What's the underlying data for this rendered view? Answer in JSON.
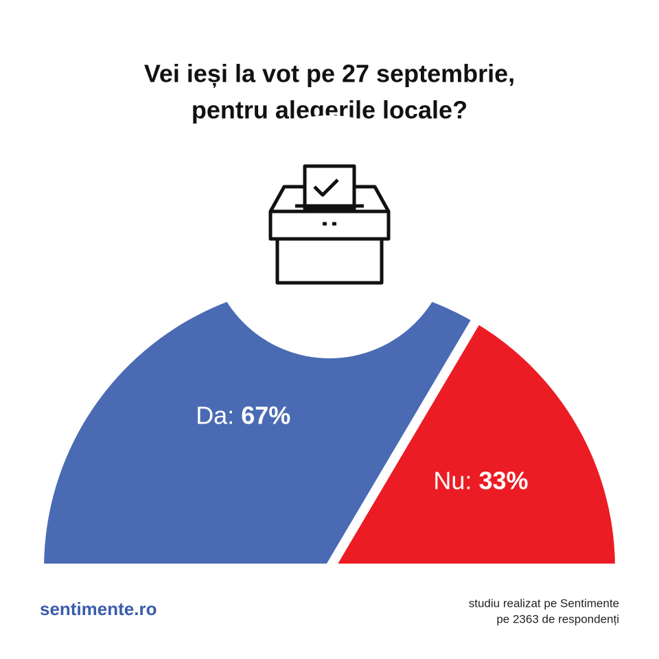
{
  "chart_data": {
    "type": "pie",
    "half": true,
    "title": [
      "Vei ieși la vot pe 27 septembrie,",
      "pentru alegerile locale?"
    ],
    "categories": [
      "Da:",
      "Nu:"
    ],
    "values": [
      67,
      33
    ],
    "value_labels": [
      "67%",
      "33%"
    ],
    "colors": [
      "#4a6bb4",
      "#ec1c24"
    ],
    "logo": "sentimente.ro",
    "source": [
      "studiu realizat pe Sentimente",
      "pe 2363 de respondenți"
    ]
  }
}
